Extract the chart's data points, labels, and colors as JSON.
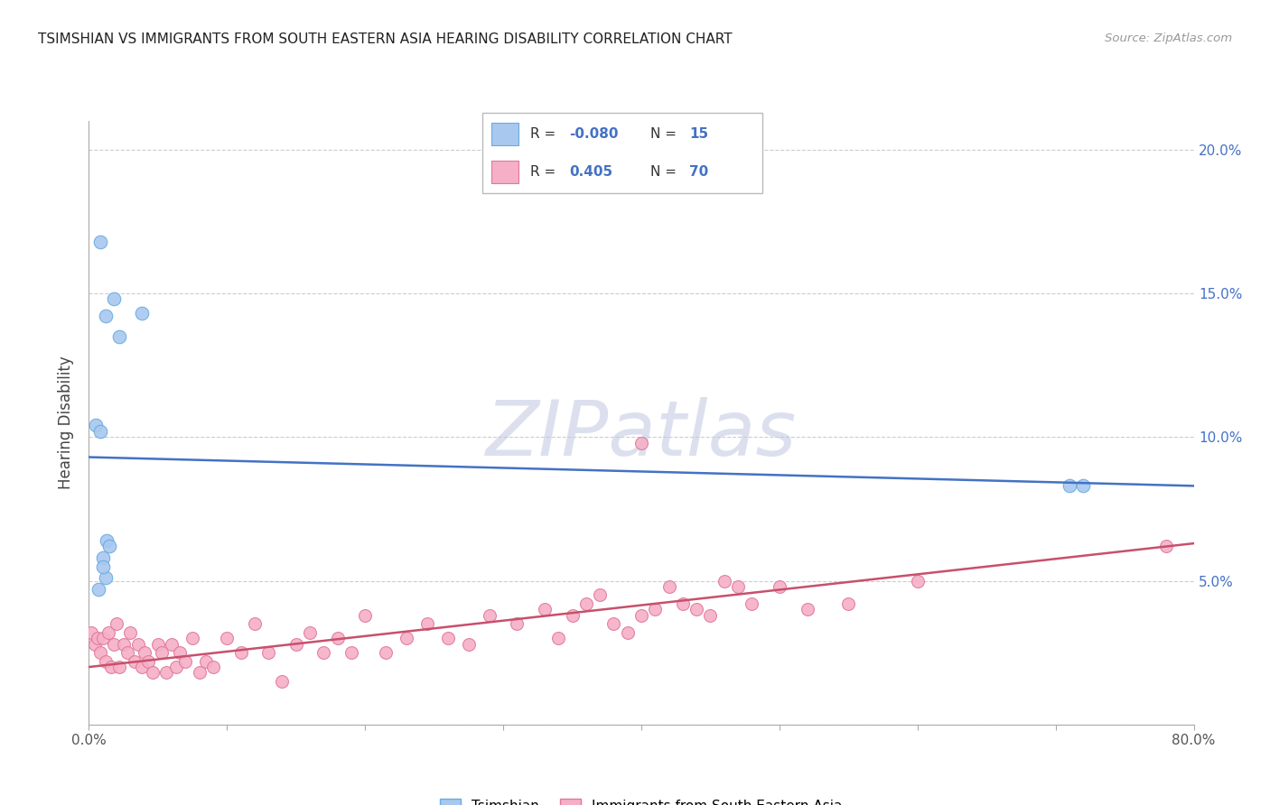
{
  "title": "TSIMSHIAN VS IMMIGRANTS FROM SOUTH EASTERN ASIA HEARING DISABILITY CORRELATION CHART",
  "source": "Source: ZipAtlas.com",
  "xlabel_tsimshian": "Tsimshian",
  "xlabel_immigrants": "Immigrants from South Eastern Asia",
  "ylabel": "Hearing Disability",
  "xlim": [
    0.0,
    0.8
  ],
  "ylim": [
    0.0,
    0.21
  ],
  "xtick_positions": [
    0.0,
    0.1,
    0.2,
    0.3,
    0.4,
    0.5,
    0.6,
    0.7,
    0.8
  ],
  "xtick_labels_show": {
    "0.0": "0.0%",
    "0.80": "80.0%"
  },
  "yticks": [
    0.0,
    0.05,
    0.1,
    0.15,
    0.2
  ],
  "ytick_labels": [
    "",
    "5.0%",
    "10.0%",
    "15.0%",
    "20.0%"
  ],
  "tsimshian_color": "#a8c8f0",
  "tsimshian_edge": "#6aaae0",
  "immigrants_color": "#f5b0c8",
  "immigrants_edge": "#e07898",
  "trendline1_color": "#4472c4",
  "trendline2_color": "#c8506a",
  "grid_color": "#c8c8c8",
  "watermark_color": "#c0c8e0",
  "tsimshian_x": [
    0.008,
    0.012,
    0.018,
    0.022,
    0.038,
    0.005,
    0.008,
    0.013,
    0.01,
    0.015,
    0.71,
    0.72,
    0.007,
    0.012,
    0.01
  ],
  "tsimshian_y": [
    0.168,
    0.142,
    0.148,
    0.135,
    0.143,
    0.104,
    0.102,
    0.064,
    0.058,
    0.062,
    0.083,
    0.083,
    0.047,
    0.051,
    0.055
  ],
  "immigrants_x": [
    0.002,
    0.004,
    0.006,
    0.008,
    0.01,
    0.012,
    0.014,
    0.016,
    0.018,
    0.02,
    0.022,
    0.025,
    0.028,
    0.03,
    0.033,
    0.036,
    0.038,
    0.04,
    0.043,
    0.046,
    0.05,
    0.053,
    0.056,
    0.06,
    0.063,
    0.066,
    0.07,
    0.075,
    0.08,
    0.085,
    0.09,
    0.1,
    0.11,
    0.12,
    0.13,
    0.14,
    0.15,
    0.16,
    0.17,
    0.18,
    0.19,
    0.2,
    0.215,
    0.23,
    0.245,
    0.26,
    0.275,
    0.29,
    0.31,
    0.33,
    0.35,
    0.37,
    0.39,
    0.41,
    0.43,
    0.45,
    0.47,
    0.34,
    0.36,
    0.38,
    0.4,
    0.42,
    0.44,
    0.46,
    0.48,
    0.5,
    0.52,
    0.55,
    0.6,
    0.78
  ],
  "immigrants_y": [
    0.032,
    0.028,
    0.03,
    0.025,
    0.03,
    0.022,
    0.032,
    0.02,
    0.028,
    0.035,
    0.02,
    0.028,
    0.025,
    0.032,
    0.022,
    0.028,
    0.02,
    0.025,
    0.022,
    0.018,
    0.028,
    0.025,
    0.018,
    0.028,
    0.02,
    0.025,
    0.022,
    0.03,
    0.018,
    0.022,
    0.02,
    0.03,
    0.025,
    0.035,
    0.025,
    0.015,
    0.028,
    0.032,
    0.025,
    0.03,
    0.025,
    0.038,
    0.025,
    0.03,
    0.035,
    0.03,
    0.028,
    0.038,
    0.035,
    0.04,
    0.038,
    0.045,
    0.032,
    0.04,
    0.042,
    0.038,
    0.048,
    0.03,
    0.042,
    0.035,
    0.038,
    0.048,
    0.04,
    0.05,
    0.042,
    0.048,
    0.04,
    0.042,
    0.05,
    0.062
  ],
  "immigrants_highlight_x": [
    0.4
  ],
  "immigrants_highlight_y": [
    0.098
  ],
  "trendline1_x_start": 0.0,
  "trendline1_x_end": 0.8,
  "trendline1_y_start": 0.093,
  "trendline1_y_end": 0.083,
  "trendline2_x_start": 0.0,
  "trendline2_x_end": 0.8,
  "trendline2_y_start": 0.02,
  "trendline2_y_end": 0.063
}
